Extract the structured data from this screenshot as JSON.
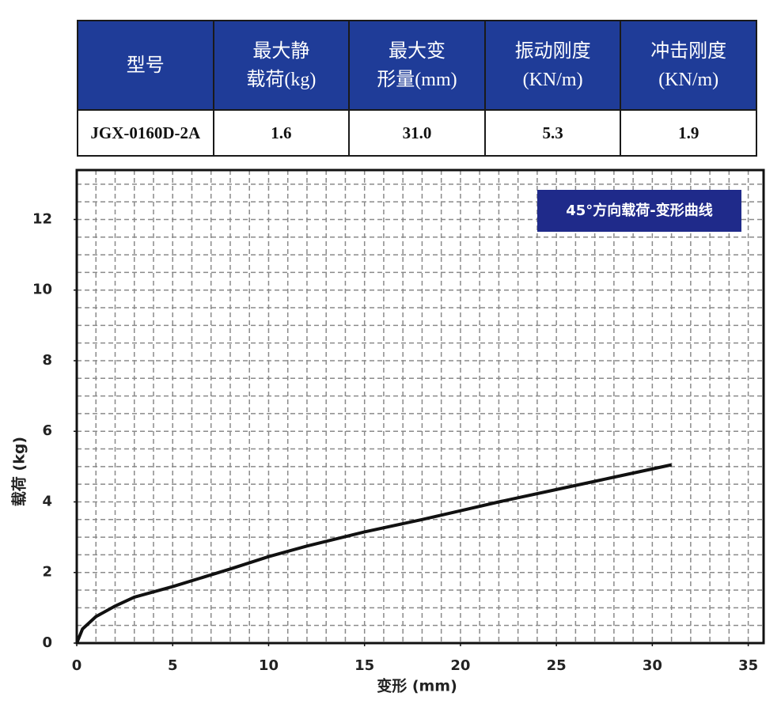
{
  "table": {
    "headers": [
      [
        "型号"
      ],
      [
        "最大静",
        "载荷(kg)"
      ],
      [
        "最大变",
        "形量(mm)"
      ],
      [
        "振动刚度",
        "(KN/m)"
      ],
      [
        "冲击刚度",
        "(KN/m)"
      ]
    ],
    "rows": [
      [
        "JGX-0160D-2A",
        "1.6",
        "31.0",
        "5.3",
        "1.9"
      ]
    ]
  },
  "chart_data": {
    "type": "line",
    "x_label": "变形 (mm)",
    "y_label": "载荷 (kg)",
    "x": [
      0,
      0.3,
      1,
      2,
      3,
      5,
      8,
      10,
      12,
      15,
      18,
      20,
      22,
      25,
      28,
      31
    ],
    "series": [
      {
        "name": "45°方向载荷-变形曲线",
        "color": "#111111",
        "values": [
          0,
          0.4,
          0.75,
          1.05,
          1.3,
          1.6,
          2.1,
          2.45,
          2.75,
          3.15,
          3.5,
          3.75,
          4.0,
          4.35,
          4.7,
          5.05
        ]
      }
    ],
    "xlim": [
      0,
      35.8
    ],
    "ylim": [
      0,
      13.4
    ],
    "xticks": [
      0,
      5,
      10,
      15,
      20,
      25,
      30,
      35
    ],
    "yticks": [
      0,
      2,
      4,
      6,
      8,
      10,
      12
    ],
    "grid": true,
    "xgrid_step": 1,
    "ygrid_step": 0.5,
    "legend": "upper right",
    "legend_color": "#1f2a8a"
  }
}
